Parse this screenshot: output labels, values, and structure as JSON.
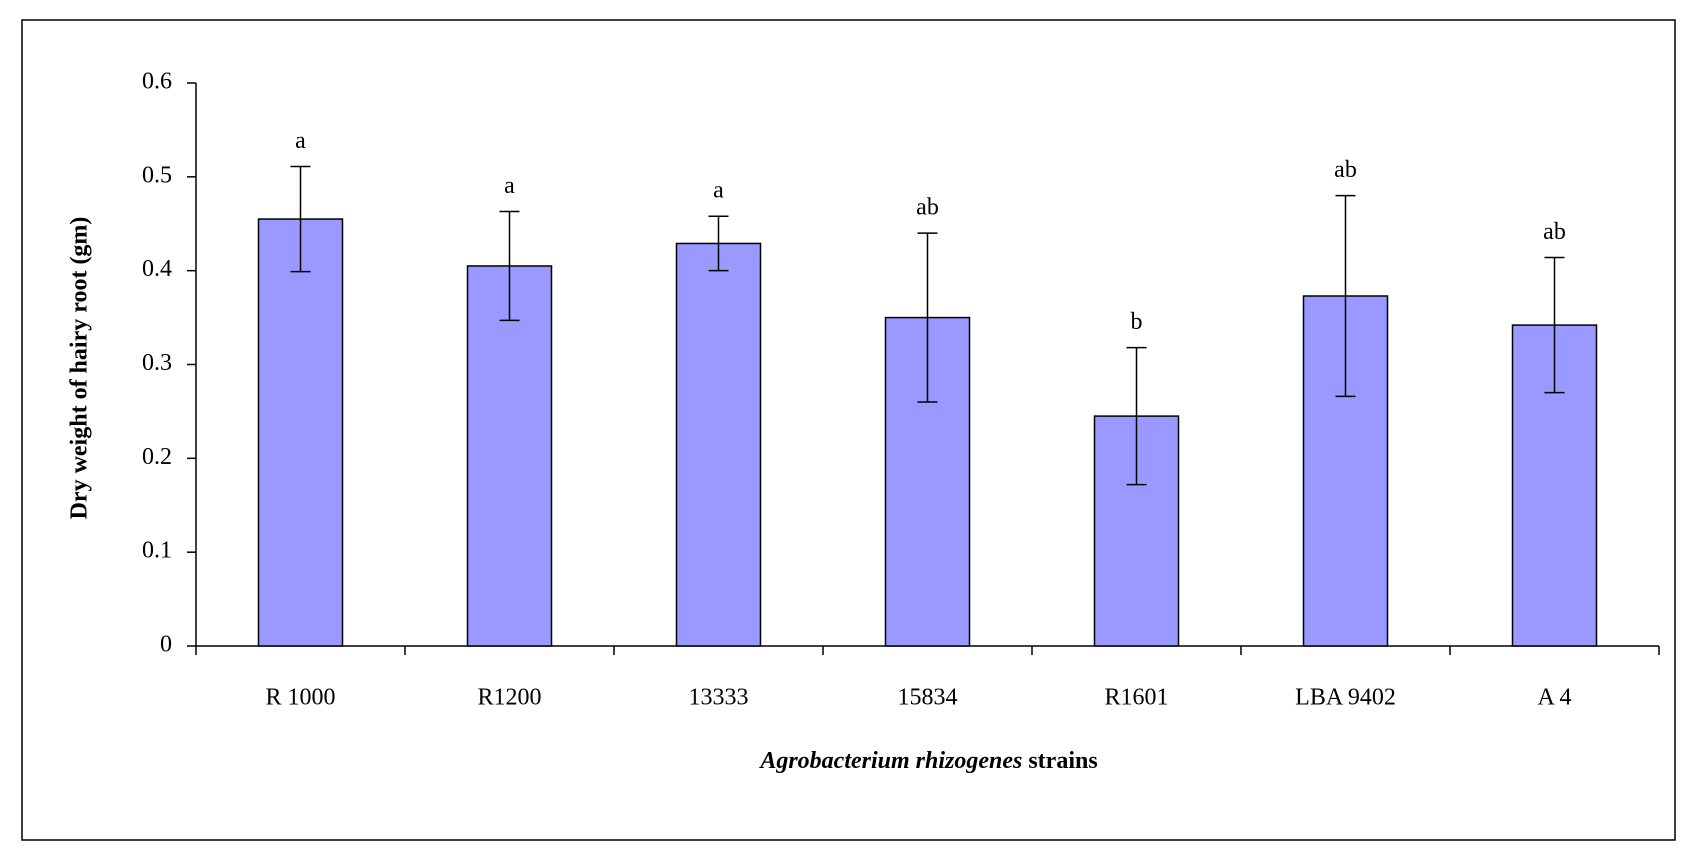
{
  "chart_data": {
    "type": "bar",
    "ylabel": "Dry weight of hairy root (gm)",
    "xlabel": [
      "Agrobacterium rhizogenes",
      "strains"
    ],
    "categories": [
      "R 1000",
      "R1200",
      "13333",
      "15834",
      "R1601",
      "LBA 9402",
      "A 4"
    ],
    "values": [
      0.455,
      0.405,
      0.429,
      0.35,
      0.245,
      0.373,
      0.342
    ],
    "errors": [
      0.056,
      0.058,
      0.029,
      0.09,
      0.073,
      0.107,
      0.072
    ],
    "annotations": [
      "a",
      "a",
      "a",
      "ab",
      "b",
      "ab",
      "ab"
    ],
    "color": "#9999ff",
    "ylim": [
      0,
      0.6
    ],
    "yticks": [
      0,
      0.1,
      0.2,
      0.3,
      0.4,
      0.5,
      0.6
    ],
    "grid": false
  }
}
